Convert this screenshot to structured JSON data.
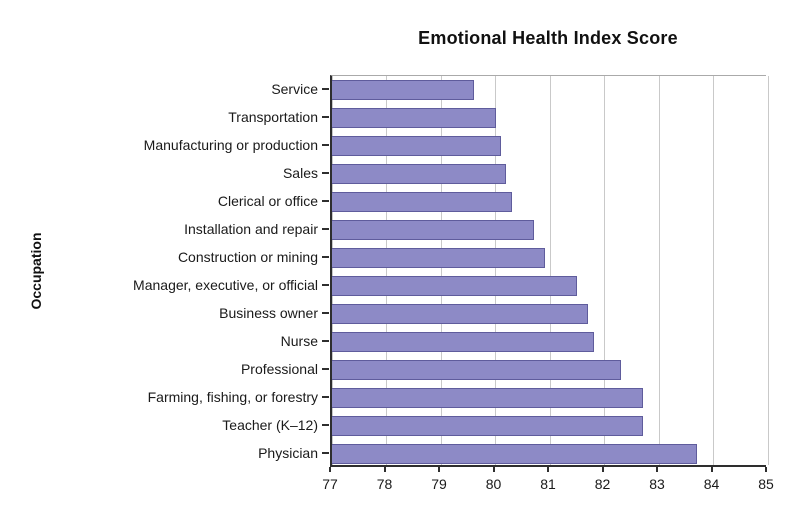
{
  "chart_data": {
    "type": "bar",
    "orientation": "horizontal",
    "title": "Emotional Health Index Score",
    "xlabel": "",
    "ylabel": "Occupation",
    "xlim": [
      77,
      85
    ],
    "xticks": [
      77,
      78,
      79,
      80,
      81,
      82,
      83,
      84,
      85
    ],
    "grid": true,
    "legend": "none",
    "bar_color": "#8d8ac6",
    "bar_border_color": "#5f5c9c",
    "categories": [
      "Service",
      "Transportation",
      "Manufacturing or production",
      "Sales",
      "Clerical or office",
      "Installation and repair",
      "Construction or mining",
      "Manager, executive, or official",
      "Business owner",
      "Nurse",
      "Professional",
      "Farming, fishing, or forestry",
      "Teacher (K–12)",
      "Physician"
    ],
    "values": [
      79.6,
      80.0,
      80.1,
      80.2,
      80.3,
      80.7,
      80.9,
      81.5,
      81.7,
      81.8,
      82.3,
      82.7,
      82.7,
      83.7
    ]
  }
}
